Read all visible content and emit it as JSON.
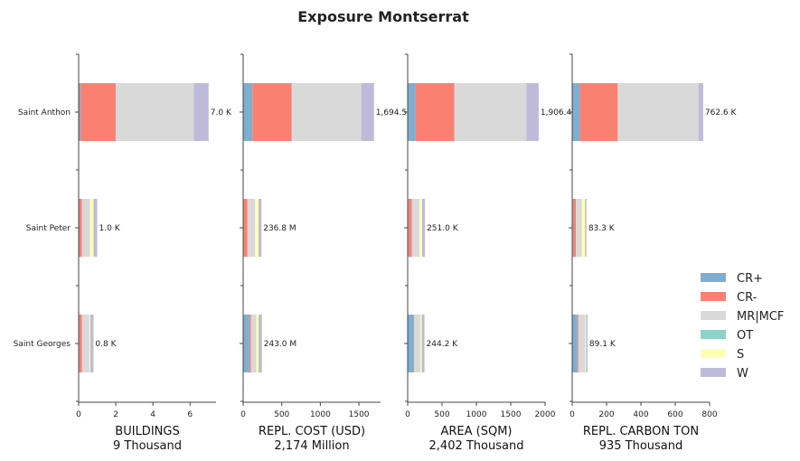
{
  "chart_data": {
    "type": "bar",
    "orientation": "horizontal",
    "stacked": true,
    "title": "Exposure Montserrat",
    "categories": [
      "Saint Anthon",
      "Saint Peter",
      "Saint Georges"
    ],
    "legend": {
      "position": "bottom-right",
      "entries": [
        {
          "name": "CR+",
          "color": "#7fafd0"
        },
        {
          "name": "CR-",
          "color": "#fa8072"
        },
        {
          "name": "MR|MCF",
          "color": "#d9d9d9"
        },
        {
          "name": "OT",
          "color": "#8dd3c7"
        },
        {
          "name": "S",
          "color": "#ffffb3"
        },
        {
          "name": "W",
          "color": "#bebada"
        }
      ]
    },
    "panels": [
      {
        "xlabel": "BUILDINGS",
        "subtitle": "9 Thousand",
        "xlim": [
          0,
          7.4
        ],
        "xticks": [
          "0",
          "2",
          "4",
          "6"
        ],
        "xtick_values": [
          0,
          2,
          4,
          6
        ],
        "labels": [
          "7.0 K",
          "1.0 K",
          "0.8 K"
        ],
        "series": [
          {
            "name": "CR+",
            "values": [
              0.1,
              0.02,
              0.03
            ]
          },
          {
            "name": "CR-",
            "values": [
              1.9,
              0.15,
              0.15
            ]
          },
          {
            "name": "MR|MCF",
            "values": [
              4.2,
              0.45,
              0.4
            ]
          },
          {
            "name": "OT",
            "values": [
              0.0,
              0.0,
              0.0
            ]
          },
          {
            "name": "S",
            "values": [
              0.0,
              0.18,
              0.05
            ]
          },
          {
            "name": "W",
            "values": [
              0.8,
              0.2,
              0.17
            ]
          }
        ]
      },
      {
        "xlabel": "REPL. COST (USD)",
        "subtitle": "2,174 Million",
        "xlim": [
          0,
          1780
        ],
        "xticks": [
          "0",
          "500",
          "1000",
          "1500"
        ],
        "xtick_values": [
          0,
          500,
          1000,
          1500
        ],
        "labels": [
          "1,694.5",
          "236.8 M",
          "243.0 M"
        ],
        "series": [
          {
            "name": "CR+",
            "values": [
              120,
              10,
              80
            ]
          },
          {
            "name": "CR-",
            "values": [
              510,
              45,
              20
            ]
          },
          {
            "name": "MR|MCF",
            "values": [
              900,
              100,
              70
            ]
          },
          {
            "name": "OT",
            "values": [
              0,
              0,
              0
            ]
          },
          {
            "name": "S",
            "values": [
              0,
              45,
              30
            ]
          },
          {
            "name": "W",
            "values": [
              164.5,
              36.8,
              43
            ]
          }
        ]
      },
      {
        "xlabel": "AREA (SQM)",
        "subtitle": "2,402 Thousand",
        "xlim": [
          0,
          2000
        ],
        "xticks": [
          "0",
          "500",
          "1000",
          "1500",
          "2000"
        ],
        "xtick_values": [
          0,
          500,
          1000,
          1500,
          2000
        ],
        "labels": [
          "1,906.4",
          "251.0 K",
          "244.2 K"
        ],
        "series": [
          {
            "name": "CR+",
            "values": [
              110,
              10,
              80
            ]
          },
          {
            "name": "CR-",
            "values": [
              570,
              50,
              15
            ]
          },
          {
            "name": "MR|MCF",
            "values": [
              1050,
              110,
              90
            ]
          },
          {
            "name": "OT",
            "values": [
              0,
              0,
              0
            ]
          },
          {
            "name": "S",
            "values": [
              0,
              40,
              20
            ]
          },
          {
            "name": "W",
            "values": [
              176.4,
              41,
              39.2
            ]
          }
        ]
      },
      {
        "xlabel": "REPL. CARBON TON",
        "subtitle": "935 Thousand",
        "xlim": [
          0,
          800
        ],
        "xticks": [
          "0",
          "200",
          "400",
          "600",
          "800"
        ],
        "xtick_values": [
          0,
          200,
          400,
          600,
          800
        ],
        "labels": [
          "762.6 K",
          "83.3 K",
          "89.1 K"
        ],
        "series": [
          {
            "name": "CR+",
            "values": [
              45,
              4,
              30
            ]
          },
          {
            "name": "CR-",
            "values": [
              220,
              18,
              6
            ]
          },
          {
            "name": "MR|MCF",
            "values": [
              470,
              35,
              40
            ]
          },
          {
            "name": "OT",
            "values": [
              0,
              0,
              0
            ]
          },
          {
            "name": "S",
            "values": [
              0,
              18,
              5
            ]
          },
          {
            "name": "W",
            "values": [
              27.6,
              8.3,
              8.1
            ]
          }
        ]
      }
    ]
  }
}
